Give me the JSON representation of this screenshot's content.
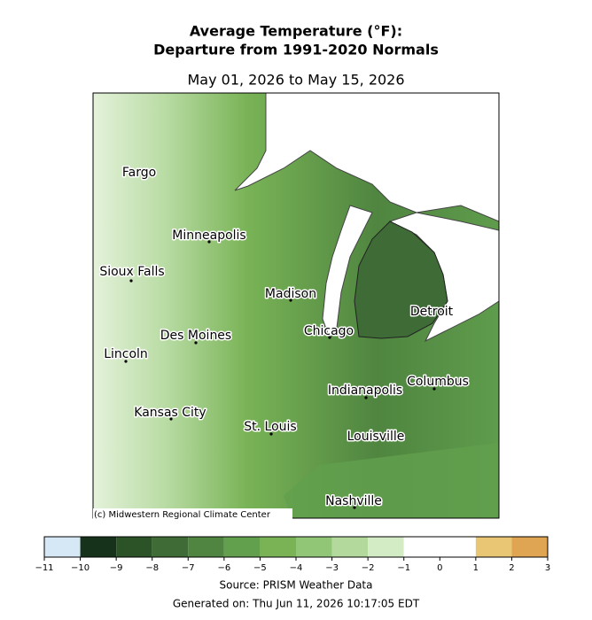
{
  "header": {
    "title_line1": "Average Temperature (°F):",
    "title_line2": "Departure from 1991-2020 Normals",
    "date_range": "May 01, 2026 to May 15, 2026"
  },
  "map": {
    "cities": [
      "Fargo",
      "Minneapolis",
      "Sioux Falls",
      "Madison",
      "Des Moines",
      "Chicago",
      "Detroit",
      "Lincoln",
      "Indianapolis",
      "Columbus",
      "Kansas City",
      "St. Louis",
      "Louisville",
      "Nashville"
    ],
    "credit": "(c) Midwestern Regional Climate Center"
  },
  "colorbar": {
    "ticks": [
      {
        "value": -11,
        "label": "−11"
      },
      {
        "value": -10,
        "label": "−10"
      },
      {
        "value": -9,
        "label": "−9"
      },
      {
        "value": -8,
        "label": "−8"
      },
      {
        "value": -7,
        "label": "−7"
      },
      {
        "value": -6,
        "label": "−6"
      },
      {
        "value": -5,
        "label": "−5"
      },
      {
        "value": -4,
        "label": "−4"
      },
      {
        "value": -3,
        "label": "−3"
      },
      {
        "value": -2,
        "label": "−2"
      },
      {
        "value": -1,
        "label": "−1"
      },
      0,
      1,
      2,
      3
    ],
    "colors": [
      "#d6e8f5",
      "#17321a",
      "#2c5228",
      "#3e6b36",
      "#4f8540",
      "#62a04e",
      "#79b356",
      "#92c677",
      "#b3d99c",
      "#d3ecc6",
      "#ffffff",
      "#ffffff",
      "#e9c673",
      "#e0a553"
    ]
  },
  "footer": {
    "source": "Source: PRISM Weather Data",
    "generated": "Generated on: Thu Jun 11, 2026 10:17:05 EDT"
  }
}
